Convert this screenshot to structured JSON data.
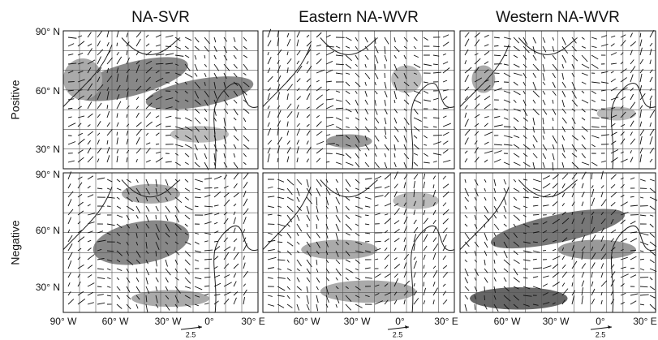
{
  "columns": [
    {
      "title": "NA-SVR",
      "lon_ticks": [
        "90° W",
        "60° W",
        "30° W",
        "0°",
        "30° E"
      ],
      "scale_label": "2.5"
    },
    {
      "title": "Eastern NA-WVR",
      "lon_ticks": [
        "60° W",
        "30° W",
        "0°",
        "30° E"
      ],
      "scale_label": "2.5"
    },
    {
      "title": "Western NA-WVR",
      "lon_ticks": [
        "60° W",
        "30° W",
        "0°",
        "30° E"
      ],
      "scale_label": "2.5"
    }
  ],
  "rows": [
    {
      "label": "Positive",
      "lat_ticks": [
        "90° N",
        "60° N",
        "30° N"
      ]
    },
    {
      "label": "Negative",
      "lat_ticks": [
        "90° N",
        "60° N",
        "30° N"
      ]
    }
  ]
}
